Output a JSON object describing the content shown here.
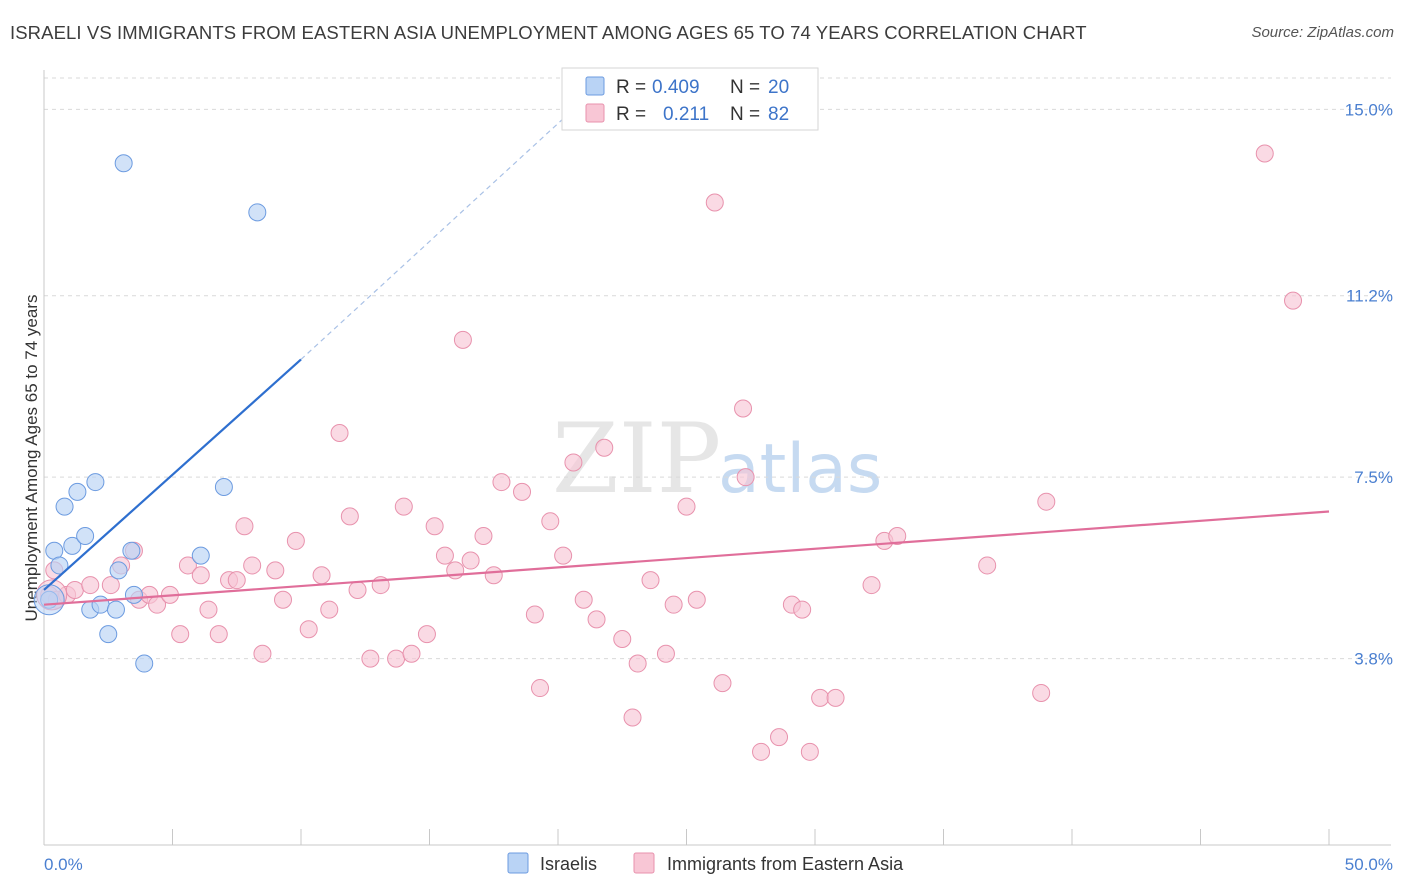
{
  "header": {
    "title": "ISRAELI VS IMMIGRANTS FROM EASTERN ASIA UNEMPLOYMENT AMONG AGES 65 TO 74 YEARS CORRELATION CHART",
    "source": "Source: ZipAtlas.com"
  },
  "watermark": {
    "zip": "ZIP",
    "atlas": "atlas"
  },
  "colors": {
    "blue_fill": "#b9d3f5",
    "blue_stroke": "#6c9be0",
    "blue_line": "#2e6fcf",
    "pink_fill": "#f8c6d5",
    "pink_stroke": "#e892ad",
    "pink_line": "#e06e9a",
    "tick_text": "#4a7fd0",
    "grid": "#d9d9d9"
  },
  "chart_data": {
    "type": "scatter",
    "title": "ISRAELI VS IMMIGRANTS FROM EASTERN ASIA UNEMPLOYMENT AMONG AGES 65 TO 74 YEARS CORRELATION CHART",
    "xlabel": "",
    "ylabel": "Unemployment Among Ages 65 to 74 years",
    "xlim": [
      0,
      50
    ],
    "ylim": [
      0,
      15.7
    ],
    "x_tick_labels": [
      "0.0%",
      "50.0%"
    ],
    "y_ticks": [
      3.8,
      7.5,
      11.2,
      15.0
    ],
    "y_tick_labels": [
      "3.8%",
      "7.5%",
      "11.2%",
      "15.0%"
    ],
    "legend": [
      {
        "series": "Israelis",
        "r_label": "R =",
        "r_value": "0.409",
        "n_label": "N =",
        "n_value": "20"
      },
      {
        "series": "Immigrants from Eastern Asia",
        "r_label": "R =",
        "r_value": "0.211",
        "n_label": "N =",
        "n_value": "82"
      }
    ],
    "series": [
      {
        "name": "Israelis",
        "color": "blue",
        "trend": {
          "x": [
            0.0,
            10.0
          ],
          "y": [
            5.2,
            9.9
          ],
          "dashed_extension_to": [
            20.6,
            15.0
          ]
        },
        "points": [
          [
            0.2,
            5.0
          ],
          [
            0.4,
            6.0
          ],
          [
            0.6,
            5.7
          ],
          [
            0.8,
            6.9
          ],
          [
            1.1,
            6.1
          ],
          [
            1.3,
            7.2
          ],
          [
            1.6,
            6.3
          ],
          [
            2.0,
            7.4
          ],
          [
            1.8,
            4.8
          ],
          [
            2.2,
            4.9
          ],
          [
            2.5,
            4.3
          ],
          [
            2.8,
            4.8
          ],
          [
            2.9,
            5.6
          ],
          [
            3.4,
            6.0
          ],
          [
            3.5,
            5.1
          ],
          [
            3.9,
            3.7
          ],
          [
            6.1,
            5.9
          ],
          [
            7.0,
            7.3
          ],
          [
            3.1,
            13.9
          ],
          [
            8.3,
            12.9
          ]
        ]
      },
      {
        "name": "Immigrants from Eastern Asia",
        "color": "pink",
        "trend": {
          "x": [
            0.0,
            50.0
          ],
          "y": [
            4.9,
            6.8
          ]
        },
        "points": [
          [
            0.2,
            5.1
          ],
          [
            0.5,
            5.0
          ],
          [
            0.9,
            5.1
          ],
          [
            1.2,
            5.2
          ],
          [
            1.8,
            5.3
          ],
          [
            2.6,
            5.3
          ],
          [
            3.0,
            5.7
          ],
          [
            3.5,
            6.0
          ],
          [
            3.7,
            5.0
          ],
          [
            4.1,
            5.1
          ],
          [
            4.4,
            4.9
          ],
          [
            4.9,
            5.1
          ],
          [
            5.3,
            4.3
          ],
          [
            5.6,
            5.7
          ],
          [
            6.1,
            5.5
          ],
          [
            6.4,
            4.8
          ],
          [
            6.8,
            4.3
          ],
          [
            7.2,
            5.4
          ],
          [
            7.5,
            5.4
          ],
          [
            7.8,
            6.5
          ],
          [
            8.1,
            5.7
          ],
          [
            8.5,
            3.9
          ],
          [
            9.0,
            5.6
          ],
          [
            9.3,
            5.0
          ],
          [
            9.8,
            6.2
          ],
          [
            10.3,
            4.4
          ],
          [
            10.8,
            5.5
          ],
          [
            11.1,
            4.8
          ],
          [
            11.5,
            8.4
          ],
          [
            11.9,
            6.7
          ],
          [
            12.2,
            5.2
          ],
          [
            12.7,
            3.8
          ],
          [
            13.1,
            5.3
          ],
          [
            13.7,
            3.8
          ],
          [
            14.0,
            6.9
          ],
          [
            14.3,
            3.9
          ],
          [
            14.9,
            4.3
          ],
          [
            15.2,
            6.5
          ],
          [
            15.6,
            5.9
          ],
          [
            16.0,
            5.6
          ],
          [
            16.3,
            10.3
          ],
          [
            16.6,
            5.8
          ],
          [
            17.1,
            6.3
          ],
          [
            17.5,
            5.5
          ],
          [
            17.8,
            7.4
          ],
          [
            18.6,
            7.2
          ],
          [
            19.1,
            4.7
          ],
          [
            19.3,
            3.2
          ],
          [
            19.7,
            6.6
          ],
          [
            20.2,
            5.9
          ],
          [
            20.6,
            7.8
          ],
          [
            21.0,
            5.0
          ],
          [
            21.5,
            4.6
          ],
          [
            21.8,
            8.1
          ],
          [
            22.5,
            4.2
          ],
          [
            22.9,
            2.6
          ],
          [
            23.1,
            3.7
          ],
          [
            23.6,
            5.4
          ],
          [
            24.2,
            3.9
          ],
          [
            24.5,
            4.9
          ],
          [
            25.0,
            6.9
          ],
          [
            25.4,
            5.0
          ],
          [
            26.1,
            13.1
          ],
          [
            26.4,
            3.3
          ],
          [
            27.2,
            8.9
          ],
          [
            27.3,
            7.5
          ],
          [
            27.9,
            1.9
          ],
          [
            28.6,
            2.2
          ],
          [
            29.1,
            4.9
          ],
          [
            29.5,
            4.8
          ],
          [
            29.8,
            1.9
          ],
          [
            30.2,
            3.0
          ],
          [
            30.8,
            3.0
          ],
          [
            32.2,
            5.3
          ],
          [
            32.7,
            6.2
          ],
          [
            33.2,
            6.3
          ],
          [
            36.7,
            5.7
          ],
          [
            38.8,
            3.1
          ],
          [
            39.0,
            7.0
          ],
          [
            47.5,
            14.1
          ],
          [
            48.6,
            11.1
          ],
          [
            0.4,
            5.6
          ]
        ]
      }
    ]
  },
  "bottom_legend": [
    {
      "label": "Israelis"
    },
    {
      "label": "Immigrants from Eastern Asia"
    }
  ]
}
